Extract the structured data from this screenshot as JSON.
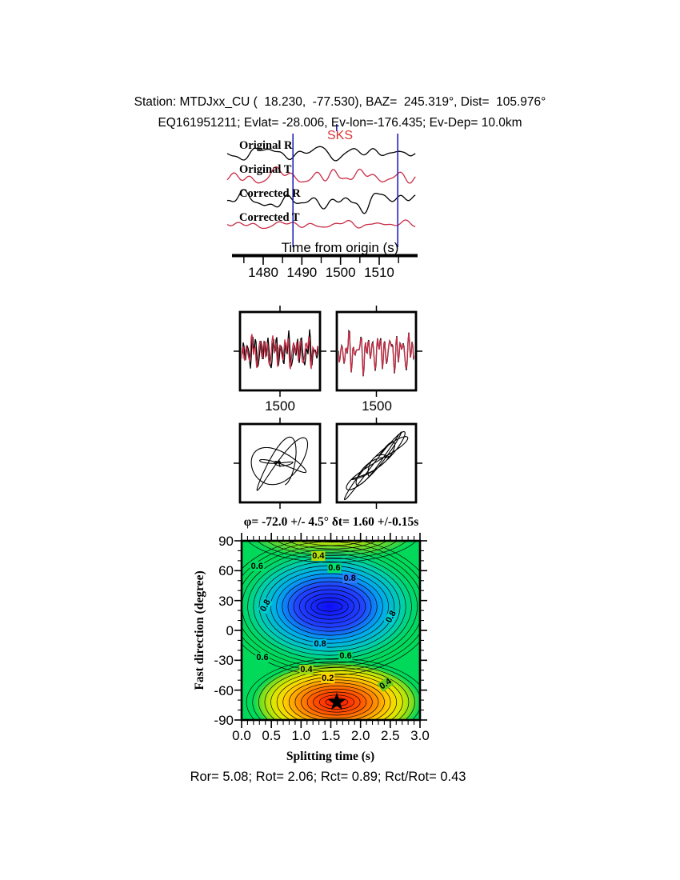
{
  "header": {
    "line1": "Station: MTDJxx_CU (  18.230,  -77.530), BAZ=  245.319°, Dist=  105.976°",
    "line2": "EQ161951211; Evlat= -28.006, Ev-lon=-176.435; Ev-Dep= 10.0km"
  },
  "footer": {
    "text": "Ror= 5.08; Rot= 2.06; Rct= 0.89; Rct/Rot= 0.43"
  },
  "colors": {
    "trace_red": "#c82d46",
    "trace_black": "#000000",
    "marker_blue": "#2222bb",
    "sks_red": "#d93434",
    "map_green": "#00d95a",
    "map_blue_core": "#0d0df5",
    "map_cyan": "#00aaee",
    "map_red_core": "#ff1200",
    "map_orange": "#ff9900",
    "map_yellow": "#ffd500"
  },
  "chart_data": [
    {
      "type": "line",
      "id": "waveform_plot",
      "phase_label": "SKS",
      "xlabel": "Time from origin (s)",
      "xticks": [
        1480,
        1490,
        1500,
        1510
      ],
      "minor_ticks": [
        1475,
        1485,
        1495,
        1505,
        1515
      ],
      "xlim": [
        1472,
        1520
      ],
      "window_markers_s": [
        1487.7,
        1514.8
      ],
      "phase_marker_s": 1499.0,
      "traces": [
        {
          "label": "Original R",
          "color": "#000000",
          "center": 192,
          "sines": [
            [
              3.2,
              0.06,
              0.3
            ],
            [
              3.8,
              0.115,
              1.4
            ],
            [
              2.6,
              0.215,
              2.3
            ],
            [
              1.6,
              0.34,
              0.8
            ]
          ],
          "bumps": [
            [
              13,
              399,
              9
            ],
            [
              -8,
              428,
              10
            ],
            [
              8,
              470,
              8
            ],
            [
              6,
              508,
              6
            ]
          ]
        },
        {
          "label": "Original T",
          "color": "#c82d46",
          "center": 221,
          "sines": [
            [
              4,
              0.07,
              2.1
            ],
            [
              5,
              0.13,
              0.2
            ],
            [
              3.5,
              0.24,
              1.2
            ],
            [
              2,
              0.36,
              2.8
            ]
          ],
          "bumps": [
            [
              10,
              416,
              7
            ],
            [
              -9,
              441,
              8
            ],
            [
              8,
              463,
              7
            ]
          ]
        },
        {
          "label": "Corrected R",
          "color": "#000000",
          "center": 251,
          "sines": [
            [
              4,
              0.065,
              1.0
            ],
            [
              5,
              0.12,
              2.6
            ],
            [
              3.5,
              0.23,
              0.4
            ],
            [
              2,
              0.35,
              1.9
            ]
          ],
          "bumps": [
            [
              -15,
              408,
              9
            ],
            [
              12,
              433,
              8
            ],
            [
              -11,
              456,
              8
            ],
            [
              9,
              479,
              8
            ]
          ]
        },
        {
          "label": "Corrected T",
          "color": "#c82d46",
          "center": 281,
          "sines": [
            [
              2.2,
              0.09,
              0.5
            ],
            [
              1.8,
              0.16,
              1.8
            ],
            [
              1.5,
              0.27,
              3.0
            ],
            [
              1.0,
              0.36,
              1.1
            ]
          ],
          "bumps": [
            [
              3,
              470,
              10
            ]
          ]
        }
      ]
    },
    {
      "type": "line",
      "id": "fast_slow_comparison",
      "xtick": "1500",
      "left": {
        "sines": [
          [
            7,
            0.14,
            0.2
          ],
          [
            9,
            0.23,
            1.2
          ],
          [
            10,
            0.38,
            2.1
          ],
          [
            6,
            0.52,
            0.9
          ]
        ],
        "red_phase_shift": 1.2,
        "red_scale": 0.9
      },
      "right": {
        "sines": [
          [
            8,
            0.15,
            1.0
          ],
          [
            10,
            0.26,
            2.0
          ],
          [
            11,
            0.4,
            0.3
          ],
          [
            5,
            0.5,
            1.5
          ]
        ],
        "red_phase_shift": 0.12,
        "red_scale": 0.95
      }
    },
    {
      "type": "scatter",
      "id": "particle_motion",
      "left": {
        "style": "elliptical-loops"
      },
      "right": {
        "style": "linearized-diagonal"
      }
    },
    {
      "type": "heatmap",
      "id": "misfit_contour",
      "title": "φ= -72.0 +/- 4.5° δt= 1.60 +/-0.15s",
      "xlabel": "Splitting time (s)",
      "ylabel": "Fast direction (degree)",
      "xticks": [
        "0.0",
        "0.5",
        "1.0",
        "1.5",
        "2.0",
        "2.5",
        "3.0"
      ],
      "yticks": [
        90,
        60,
        30,
        0,
        -30,
        -60,
        -90
      ],
      "xlim": [
        0.0,
        3.0
      ],
      "ylim": [
        -90,
        90
      ],
      "x_minor_step": 0.1,
      "y_minor_step": 10,
      "best_fit": {
        "splitting_time_s": 1.6,
        "fast_direction_deg": -72
      },
      "max_energy_center": {
        "t": 1.48,
        "phi": 24
      },
      "min_energy_center": {
        "t": 1.6,
        "phi": -72
      },
      "wrap_center": {
        "t": 1.52,
        "phi": 101
      },
      "contour_labels": [
        {
          "value": "0.6",
          "t": 0.26,
          "phi": 64,
          "bg": "#00dc63",
          "rot": 0
        },
        {
          "value": "0.4",
          "t": 1.29,
          "phi": 75,
          "bg": "#b4de08",
          "rot": 0
        },
        {
          "value": "0.6",
          "t": 1.56,
          "phi": 63,
          "bg": "#00e06e",
          "rot": 0
        },
        {
          "value": "0.8",
          "t": 1.82,
          "phi": 52,
          "bg": "#2e7bff",
          "rot": 0
        },
        {
          "value": "0.8",
          "t": 0.4,
          "phi": 25,
          "bg": "#00cdd4",
          "rot": -62
        },
        {
          "value": "0.8",
          "t": 2.52,
          "phi": 14,
          "bg": "#00cdd4",
          "rot": -62
        },
        {
          "value": "0.8",
          "t": 1.32,
          "phi": -14,
          "bg": "#00bce8",
          "rot": 0
        },
        {
          "value": "0.6",
          "t": 0.35,
          "phi": -27,
          "bg": "#00dc63",
          "rot": 0
        },
        {
          "value": "0.6",
          "t": 1.75,
          "phi": -26,
          "bg": "#00dc63",
          "rot": 0
        },
        {
          "value": "0.4",
          "t": 1.09,
          "phi": -39,
          "bg": "#9cd816",
          "rot": 0
        },
        {
          "value": "0.2",
          "t": 1.45,
          "phi": -48,
          "bg": "#ffd000",
          "rot": 0
        },
        {
          "value": "0.4",
          "t": 2.42,
          "phi": -54,
          "bg": "#66cc1e",
          "rot": -35
        }
      ]
    }
  ]
}
